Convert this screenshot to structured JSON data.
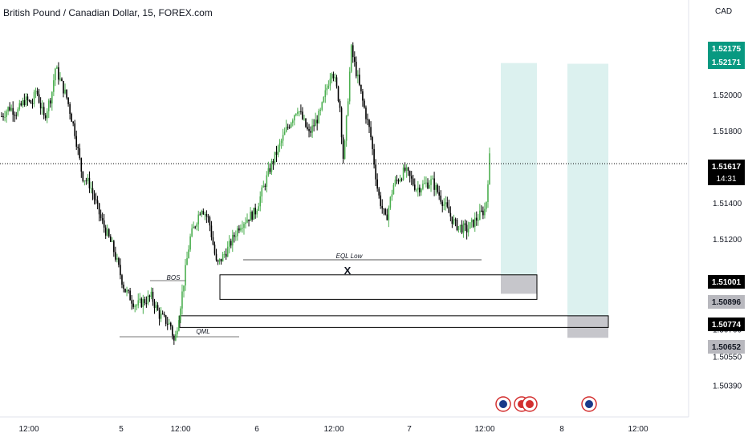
{
  "header": {
    "title": "British Pound / Canadian Dollar, 15, FOREX.com",
    "currency": "CAD"
  },
  "colors": {
    "up": "#26a69a",
    "down": "#000000",
    "candle_green": "#4caf50",
    "target_zone": "#b2dfdb",
    "stop_zone": "#b8b8be",
    "current_price_tag": "#000000",
    "tp_tag": "#089981"
  },
  "chart_data": {
    "type": "candlestick",
    "symbol": "GBPCAD",
    "timeframe": "15",
    "x_labels": [
      "12:00",
      "5",
      "12:00",
      "6",
      "12:00",
      "7",
      "12:00",
      "8",
      "12:00"
    ],
    "y_ticks": [
      "1.52000",
      "1.51800",
      "1.51400",
      "1.51200",
      "1.50850",
      "1.50700",
      "1.50550",
      "1.50390"
    ],
    "ylim": [
      1.5033,
      1.5248
    ],
    "price_path": [
      [
        0,
        1.5188
      ],
      [
        0.1,
        1.5193
      ],
      [
        0.2,
        1.519
      ],
      [
        0.3,
        1.5197
      ],
      [
        0.4,
        1.5195
      ],
      [
        0.45,
        1.5203
      ],
      [
        0.55,
        1.5187
      ],
      [
        0.65,
        1.52
      ],
      [
        0.7,
        1.5215
      ],
      [
        0.85,
        1.5198
      ],
      [
        0.95,
        1.518
      ],
      [
        1.05,
        1.5155
      ],
      [
        1.15,
        1.515
      ],
      [
        1.3,
        1.513
      ],
      [
        1.45,
        1.5115
      ],
      [
        1.6,
        1.5092
      ],
      [
        1.75,
        1.5083
      ],
      [
        1.95,
        1.5088
      ],
      [
        2.05,
        1.5078
      ],
      [
        2.2,
        1.5072
      ],
      [
        2.25,
        1.5062
      ],
      [
        2.35,
        1.509
      ],
      [
        2.45,
        1.512
      ],
      [
        2.6,
        1.5138
      ],
      [
        2.7,
        1.513
      ],
      [
        2.8,
        1.5105
      ],
      [
        2.95,
        1.5115
      ],
      [
        3.1,
        1.5128
      ],
      [
        3.3,
        1.5135
      ],
      [
        3.5,
        1.516
      ],
      [
        3.7,
        1.518
      ],
      [
        3.85,
        1.5193
      ],
      [
        4.0,
        1.5178
      ],
      [
        4.15,
        1.519
      ],
      [
        4.3,
        1.5215
      ],
      [
        4.4,
        1.5195
      ],
      [
        4.45,
        1.5162
      ],
      [
        4.55,
        1.5225
      ],
      [
        4.7,
        1.5196
      ],
      [
        4.8,
        1.5178
      ],
      [
        4.9,
        1.5145
      ],
      [
        5.0,
        1.513
      ],
      [
        5.1,
        1.515
      ],
      [
        5.25,
        1.5158
      ],
      [
        5.4,
        1.5148
      ],
      [
        5.6,
        1.5152
      ],
      [
        5.75,
        1.514
      ],
      [
        5.9,
        1.5128
      ],
      [
        6.05,
        1.5125
      ],
      [
        6.2,
        1.5132
      ],
      [
        6.3,
        1.5137
      ],
      [
        6.35,
        1.5165
      ]
    ],
    "current_price": 1.51617,
    "countdown": "14:31",
    "annotations": [
      {
        "label": "BOS",
        "price": 1.5104
      },
      {
        "label": "QML",
        "price": 1.5074
      },
      {
        "label": "EQL Low",
        "price": 1.5112
      }
    ],
    "zones": [
      {
        "name": "order-block-upper",
        "top": 1.51001,
        "bottom": 1.50865
      },
      {
        "name": "order-block-lower",
        "top": 1.50774,
        "bottom": 1.50745
      }
    ],
    "positions": [
      {
        "name": "position-1",
        "target": 1.52175,
        "entry": 1.51001,
        "stop": 1.50896
      },
      {
        "name": "position-2",
        "target": 1.52171,
        "entry": 1.50774,
        "stop": 1.50652
      }
    ],
    "price_tags": [
      {
        "text": "1.52175",
        "style": "tp"
      },
      {
        "text": "1.52171",
        "style": "tp"
      },
      {
        "text": "1.51617",
        "style": "current"
      },
      {
        "text": "1.51001",
        "style": "dark"
      },
      {
        "text": "1.50896",
        "style": "grey"
      },
      {
        "text": "1.50774",
        "style": "dark"
      },
      {
        "text": "1.50652",
        "style": "grey"
      }
    ],
    "marker": "X"
  }
}
